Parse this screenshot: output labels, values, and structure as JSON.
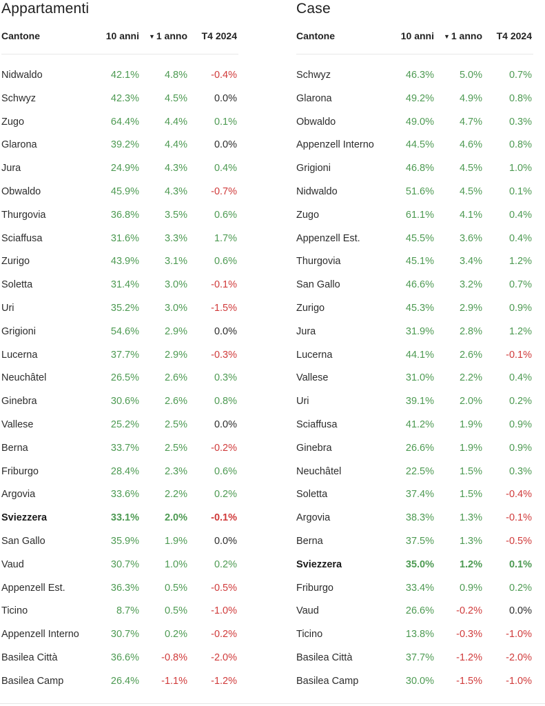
{
  "left": {
    "title": "Appartamenti",
    "headers": {
      "canton": "Cantone",
      "ten": "10 anni",
      "one": "1 anno",
      "q": "T4 2024"
    },
    "rows": [
      {
        "name": "Nidwaldo",
        "ten": "42.1%",
        "one": "4.8%",
        "q": "-0.4%"
      },
      {
        "name": "Schwyz",
        "ten": "42.3%",
        "one": "4.5%",
        "q": "0.0%"
      },
      {
        "name": "Zugo",
        "ten": "64.4%",
        "one": "4.4%",
        "q": "0.1%"
      },
      {
        "name": "Glarona",
        "ten": "39.2%",
        "one": "4.4%",
        "q": "0.0%"
      },
      {
        "name": "Jura",
        "ten": "24.9%",
        "one": "4.3%",
        "q": "0.4%"
      },
      {
        "name": "Obwaldo",
        "ten": "45.9%",
        "one": "4.3%",
        "q": "-0.7%"
      },
      {
        "name": "Thurgovia",
        "ten": "36.8%",
        "one": "3.5%",
        "q": "0.6%"
      },
      {
        "name": "Sciaffusa",
        "ten": "31.6%",
        "one": "3.3%",
        "q": "1.7%"
      },
      {
        "name": "Zurigo",
        "ten": "43.9%",
        "one": "3.1%",
        "q": "0.6%"
      },
      {
        "name": "Soletta",
        "ten": "31.4%",
        "one": "3.0%",
        "q": "-0.1%"
      },
      {
        "name": "Uri",
        "ten": "35.2%",
        "one": "3.0%",
        "q": "-1.5%"
      },
      {
        "name": "Grigioni",
        "ten": "54.6%",
        "one": "2.9%",
        "q": "0.0%"
      },
      {
        "name": "Lucerna",
        "ten": "37.7%",
        "one": "2.9%",
        "q": "-0.3%"
      },
      {
        "name": "Neuchâtel",
        "ten": "26.5%",
        "one": "2.6%",
        "q": "0.3%"
      },
      {
        "name": "Ginebra",
        "ten": "30.6%",
        "one": "2.6%",
        "q": "0.8%"
      },
      {
        "name": "Vallese",
        "ten": "25.2%",
        "one": "2.5%",
        "q": "0.0%"
      },
      {
        "name": "Berna",
        "ten": "33.7%",
        "one": "2.5%",
        "q": "-0.2%"
      },
      {
        "name": "Friburgo",
        "ten": "28.4%",
        "one": "2.3%",
        "q": "0.6%"
      },
      {
        "name": "Argovia",
        "ten": "33.6%",
        "one": "2.2%",
        "q": "0.2%"
      },
      {
        "name": "Sviezzera",
        "ten": "33.1%",
        "one": "2.0%",
        "q": "-0.1%",
        "bold": true
      },
      {
        "name": "San Gallo",
        "ten": "35.9%",
        "one": "1.9%",
        "q": "0.0%"
      },
      {
        "name": "Vaud",
        "ten": "30.7%",
        "one": "1.0%",
        "q": "0.2%"
      },
      {
        "name": "Appenzell Est.",
        "ten": "36.3%",
        "one": "0.5%",
        "q": "-0.5%"
      },
      {
        "name": "Ticino",
        "ten": "8.7%",
        "one": "0.5%",
        "q": "-1.0%"
      },
      {
        "name": "Appenzell Interno",
        "ten": "30.7%",
        "one": "0.2%",
        "q": "-0.2%"
      },
      {
        "name": "Basilea Città",
        "ten": "36.6%",
        "one": "-0.8%",
        "q": "-2.0%"
      },
      {
        "name": "Basilea Camp",
        "ten": "26.4%",
        "one": "-1.1%",
        "q": "-1.2%"
      }
    ]
  },
  "right": {
    "title": "Case",
    "headers": {
      "canton": "Cantone",
      "ten": "10 anni",
      "one": "1 anno",
      "q": "T4 2024"
    },
    "rows": [
      {
        "name": "Schwyz",
        "ten": "46.3%",
        "one": "5.0%",
        "q": "0.7%"
      },
      {
        "name": "Glarona",
        "ten": "49.2%",
        "one": "4.9%",
        "q": "0.8%"
      },
      {
        "name": "Obwaldo",
        "ten": "49.0%",
        "one": "4.7%",
        "q": "0.3%"
      },
      {
        "name": "Appenzell Interno",
        "ten": "44.5%",
        "one": "4.6%",
        "q": "0.8%"
      },
      {
        "name": "Grigioni",
        "ten": "46.8%",
        "one": "4.5%",
        "q": "1.0%"
      },
      {
        "name": "Nidwaldo",
        "ten": "51.6%",
        "one": "4.5%",
        "q": "0.1%"
      },
      {
        "name": "Zugo",
        "ten": "61.1%",
        "one": "4.1%",
        "q": "0.4%"
      },
      {
        "name": "Appenzell Est.",
        "ten": "45.5%",
        "one": "3.6%",
        "q": "0.4%"
      },
      {
        "name": "Thurgovia",
        "ten": "45.1%",
        "one": "3.4%",
        "q": "1.2%"
      },
      {
        "name": "San Gallo",
        "ten": "46.6%",
        "one": "3.2%",
        "q": "0.7%"
      },
      {
        "name": "Zurigo",
        "ten": "45.3%",
        "one": "2.9%",
        "q": "0.9%"
      },
      {
        "name": "Jura",
        "ten": "31.9%",
        "one": "2.8%",
        "q": "1.2%"
      },
      {
        "name": "Lucerna",
        "ten": "44.1%",
        "one": "2.6%",
        "q": "-0.1%"
      },
      {
        "name": "Vallese",
        "ten": "31.0%",
        "one": "2.2%",
        "q": "0.4%"
      },
      {
        "name": "Uri",
        "ten": "39.1%",
        "one": "2.0%",
        "q": "0.2%"
      },
      {
        "name": "Sciaffusa",
        "ten": "41.2%",
        "one": "1.9%",
        "q": "0.9%"
      },
      {
        "name": "Ginebra",
        "ten": "26.6%",
        "one": "1.9%",
        "q": "0.9%"
      },
      {
        "name": "Neuchâtel",
        "ten": "22.5%",
        "one": "1.5%",
        "q": "0.3%"
      },
      {
        "name": "Soletta",
        "ten": "37.4%",
        "one": "1.5%",
        "q": "-0.4%"
      },
      {
        "name": "Argovia",
        "ten": "38.3%",
        "one": "1.3%",
        "q": "-0.1%"
      },
      {
        "name": "Berna",
        "ten": "37.5%",
        "one": "1.3%",
        "q": "-0.5%"
      },
      {
        "name": "Sviezzera",
        "ten": "35.0%",
        "one": "1.2%",
        "q": "0.1%",
        "bold": true
      },
      {
        "name": "Friburgo",
        "ten": "33.4%",
        "one": "0.9%",
        "q": "0.2%"
      },
      {
        "name": "Vaud",
        "ten": "26.6%",
        "one": "-0.2%",
        "q": "0.0%"
      },
      {
        "name": "Ticino",
        "ten": "13.8%",
        "one": "-0.3%",
        "q": "-1.0%"
      },
      {
        "name": "Basilea Città",
        "ten": "37.7%",
        "one": "-1.2%",
        "q": "-2.0%"
      },
      {
        "name": "Basilea Camp",
        "ten": "30.0%",
        "one": "-1.5%",
        "q": "-1.0%"
      }
    ]
  },
  "colors": {
    "positive": "#4d9a52",
    "negative": "#d03a3a",
    "zero": "#2c2c2c"
  },
  "sort_indicator": "sort-desc-icon"
}
